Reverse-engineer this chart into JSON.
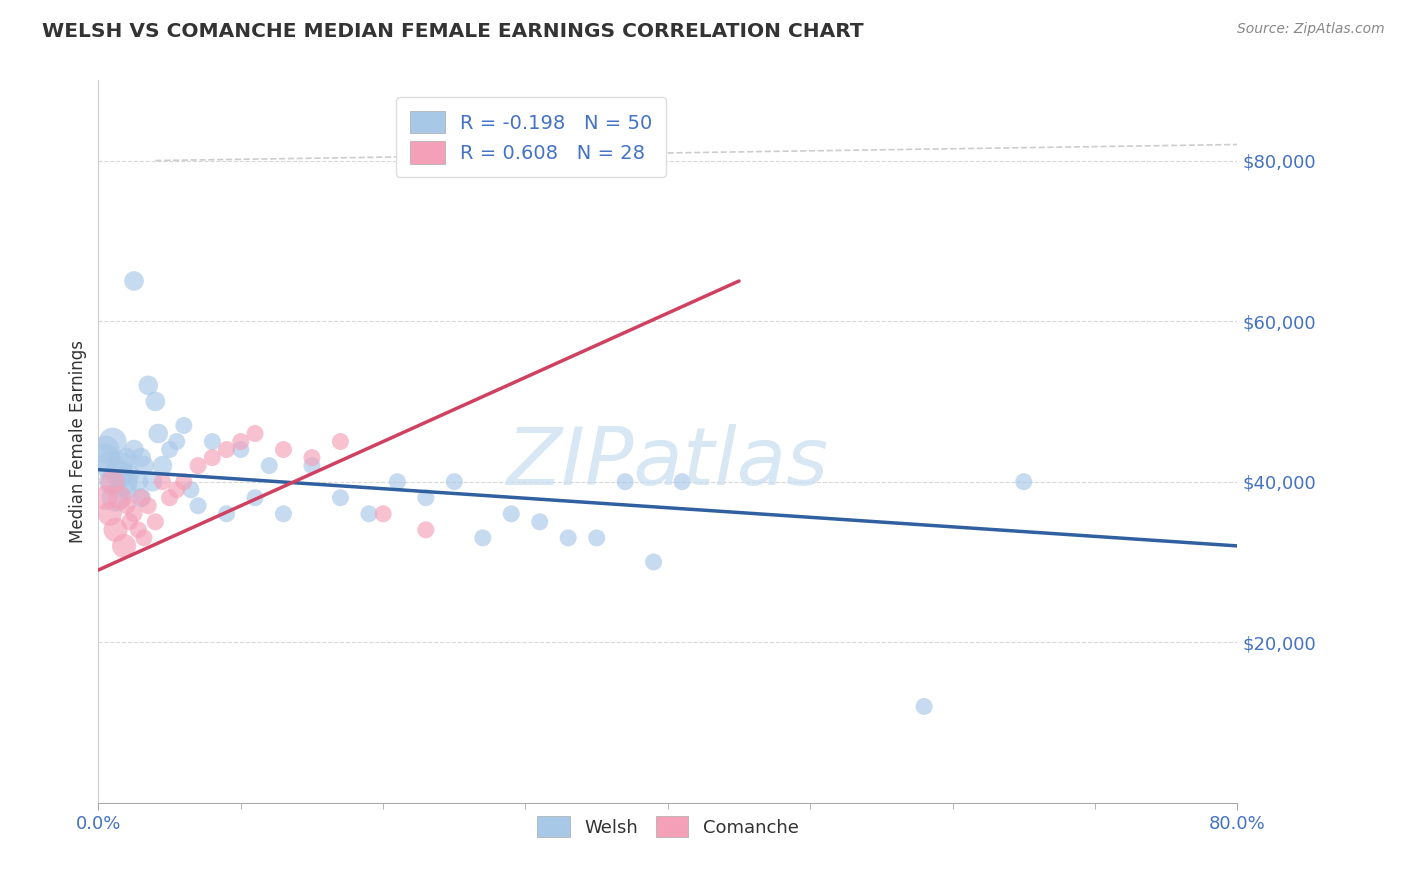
{
  "title": "WELSH VS COMANCHE MEDIAN FEMALE EARNINGS CORRELATION CHART",
  "source": "Source: ZipAtlas.com",
  "ylabel": "Median Female Earnings",
  "xlim": [
    0.0,
    0.8
  ],
  "ylim": [
    0,
    90000
  ],
  "yticks": [
    20000,
    40000,
    60000,
    80000
  ],
  "ytick_labels": [
    "$20,000",
    "$40,000",
    "$60,000",
    "$80,000"
  ],
  "xtick_major": [
    0.0,
    0.8
  ],
  "xtick_minor": [
    0.1,
    0.2,
    0.3,
    0.4,
    0.5,
    0.6,
    0.7
  ],
  "xtick_major_labels": [
    "0.0%",
    "80.0%"
  ],
  "welsh_color": "#a8c8e8",
  "comanche_color": "#f4a0b8",
  "welsh_line_color": "#3060a0",
  "comanche_line_color": "#d04060",
  "diag_line_color": "#c8c8c8",
  "watermark_color": "#c8ddf0",
  "watermark_text": "ZIPatlas",
  "legend_welsh_R": "-0.198",
  "legend_welsh_N": "50",
  "legend_comanche_R": "0.608",
  "legend_comanche_N": "28",
  "background_color": "#ffffff",
  "grid_color": "#d8d8d8",
  "title_color": "#333333",
  "tick_label_color": "#4472c4",
  "ylabel_color": "#333333",
  "welsh_x": [
    0.005,
    0.005,
    0.008,
    0.01,
    0.01,
    0.012,
    0.015,
    0.015,
    0.018,
    0.02,
    0.02,
    0.022,
    0.025,
    0.025,
    0.028,
    0.03,
    0.03,
    0.032,
    0.035,
    0.038,
    0.04,
    0.042,
    0.045,
    0.05,
    0.055,
    0.06,
    0.065,
    0.07,
    0.08,
    0.09,
    0.1,
    0.11,
    0.12,
    0.13,
    0.15,
    0.17,
    0.19,
    0.21,
    0.23,
    0.25,
    0.27,
    0.29,
    0.31,
    0.33,
    0.35,
    0.37,
    0.39,
    0.41,
    0.58,
    0.65
  ],
  "welsh_y": [
    43000,
    44000,
    42000,
    40000,
    45000,
    38000,
    42000,
    41000,
    40000,
    43000,
    39000,
    41000,
    65000,
    44000,
    40000,
    43000,
    38000,
    42000,
    52000,
    40000,
    50000,
    46000,
    42000,
    44000,
    45000,
    47000,
    39000,
    37000,
    45000,
    36000,
    44000,
    38000,
    42000,
    36000,
    42000,
    38000,
    36000,
    40000,
    38000,
    40000,
    33000,
    36000,
    35000,
    33000,
    33000,
    40000,
    30000,
    40000,
    12000,
    40000
  ],
  "comanche_x": [
    0.005,
    0.008,
    0.01,
    0.012,
    0.015,
    0.018,
    0.02,
    0.022,
    0.025,
    0.028,
    0.03,
    0.032,
    0.035,
    0.04,
    0.045,
    0.05,
    0.055,
    0.06,
    0.07,
    0.08,
    0.09,
    0.1,
    0.11,
    0.13,
    0.15,
    0.17,
    0.2,
    0.23
  ],
  "comanche_y": [
    38000,
    36000,
    40000,
    34000,
    38000,
    32000,
    37000,
    35000,
    36000,
    34000,
    38000,
    33000,
    37000,
    35000,
    40000,
    38000,
    39000,
    40000,
    42000,
    43000,
    44000,
    45000,
    46000,
    44000,
    43000,
    45000,
    36000,
    34000
  ],
  "welsh_trend_x": [
    0.0,
    0.8
  ],
  "welsh_trend_y": [
    41500,
    32000
  ],
  "comanche_trend_x": [
    0.0,
    0.45
  ],
  "comanche_trend_y": [
    29000,
    65000
  ],
  "diag_line_x": [
    0.0,
    0.8
  ],
  "diag_line_y": [
    80000,
    80000
  ]
}
